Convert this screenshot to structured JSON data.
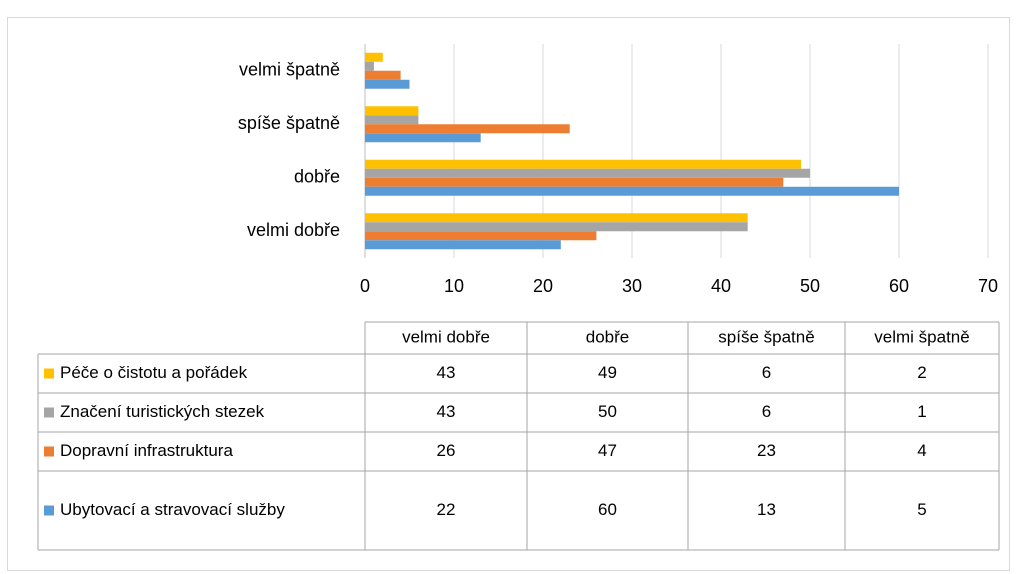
{
  "chart_data": {
    "type": "bar",
    "orientation": "horizontal",
    "categories": [
      "velmi dobře",
      "dobře",
      "spíše špatně",
      "velmi špatně"
    ],
    "series": [
      {
        "name": "Péče o čistotu a pořádek",
        "color": "#ffc000",
        "values": [
          43,
          49,
          6,
          2
        ]
      },
      {
        "name": "Značení turistických stezek",
        "color": "#a5a5a5",
        "values": [
          43,
          50,
          6,
          1
        ]
      },
      {
        "name": "Dopravní infrastruktura",
        "color": "#ed7d31",
        "values": [
          26,
          47,
          23,
          4
        ]
      },
      {
        "name": "Ubytovací a stravovací služby",
        "color": "#5b9bd5",
        "values": [
          22,
          60,
          13,
          5
        ]
      }
    ],
    "xlim": [
      0,
      70
    ],
    "xticks": [
      0,
      10,
      20,
      30,
      40,
      50,
      60,
      70
    ],
    "grid": true,
    "data_table": true
  }
}
